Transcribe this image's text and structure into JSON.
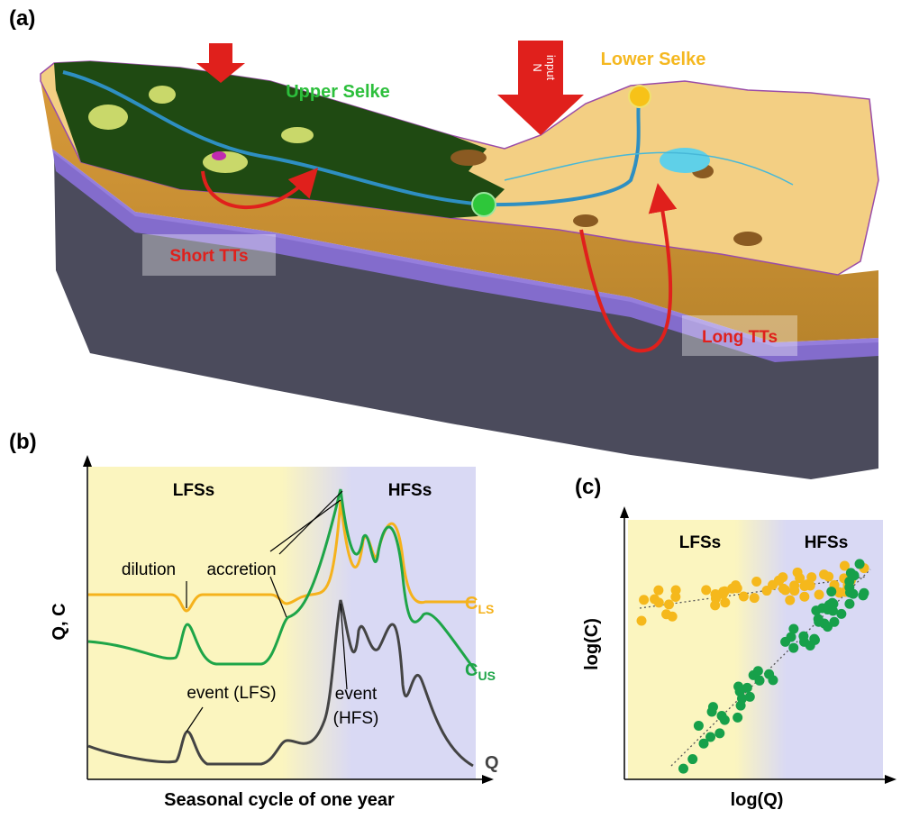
{
  "panel_a": {
    "label": "(a)",
    "upper_region": "Upper Selke",
    "lower_region": "Lower Selke",
    "n_input": [
      "N",
      "input"
    ],
    "short_tt": "Short TTs",
    "long_tt": "Long TTs"
  },
  "panel_b": {
    "label": "(b)",
    "regions": [
      "LFSs",
      "HFSs"
    ],
    "annotations": {
      "dilution": "dilution",
      "accretion": "accretion",
      "event_lfs": "event (LFS)",
      "event_hfs": [
        "event",
        "(HFS)"
      ]
    },
    "series_labels": [
      {
        "main": "C",
        "sub": "LS"
      },
      {
        "main": "C",
        "sub": "US"
      },
      {
        "main": "Q"
      }
    ],
    "y_label": "Q, C",
    "x_label": "Seasonal cycle of one year"
  },
  "panel_c": {
    "label": "(c)",
    "regions": [
      "LFSs",
      "HFSs"
    ],
    "y_label": "log(C)",
    "x_label": "log(Q)"
  }
}
